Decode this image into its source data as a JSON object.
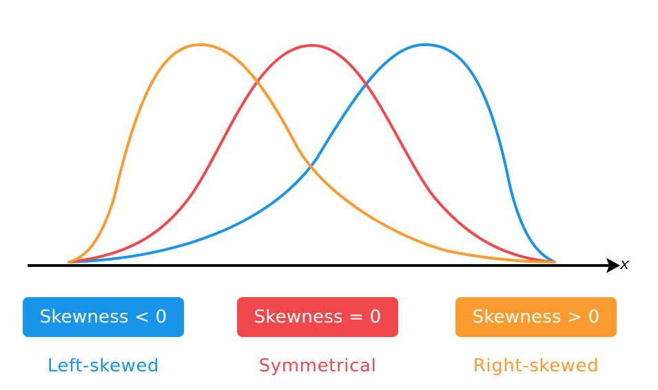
{
  "axis": {
    "label": "x"
  },
  "curves": [
    {
      "id": "left-skewed",
      "color": "#1894E8",
      "peak_position": 0.75
    },
    {
      "id": "symmetrical",
      "color": "#F2474B",
      "peak_position": 0.5
    },
    {
      "id": "right-skewed",
      "color": "#FB9A2E",
      "peak_position": 0.27
    }
  ],
  "badges": [
    {
      "label": "Skewness < 0",
      "color": "#1894E8"
    },
    {
      "label": "Skewness = 0",
      "color": "#F2474B"
    },
    {
      "label": "Skewness > 0",
      "color": "#FB9A2E"
    }
  ],
  "captions": [
    {
      "text": "Left-skewed",
      "color": "#1894E8"
    },
    {
      "text": "Symmetrical",
      "color": "#F2474B"
    },
    {
      "text": "Right-skewed",
      "color": "#FB9A2E"
    }
  ]
}
